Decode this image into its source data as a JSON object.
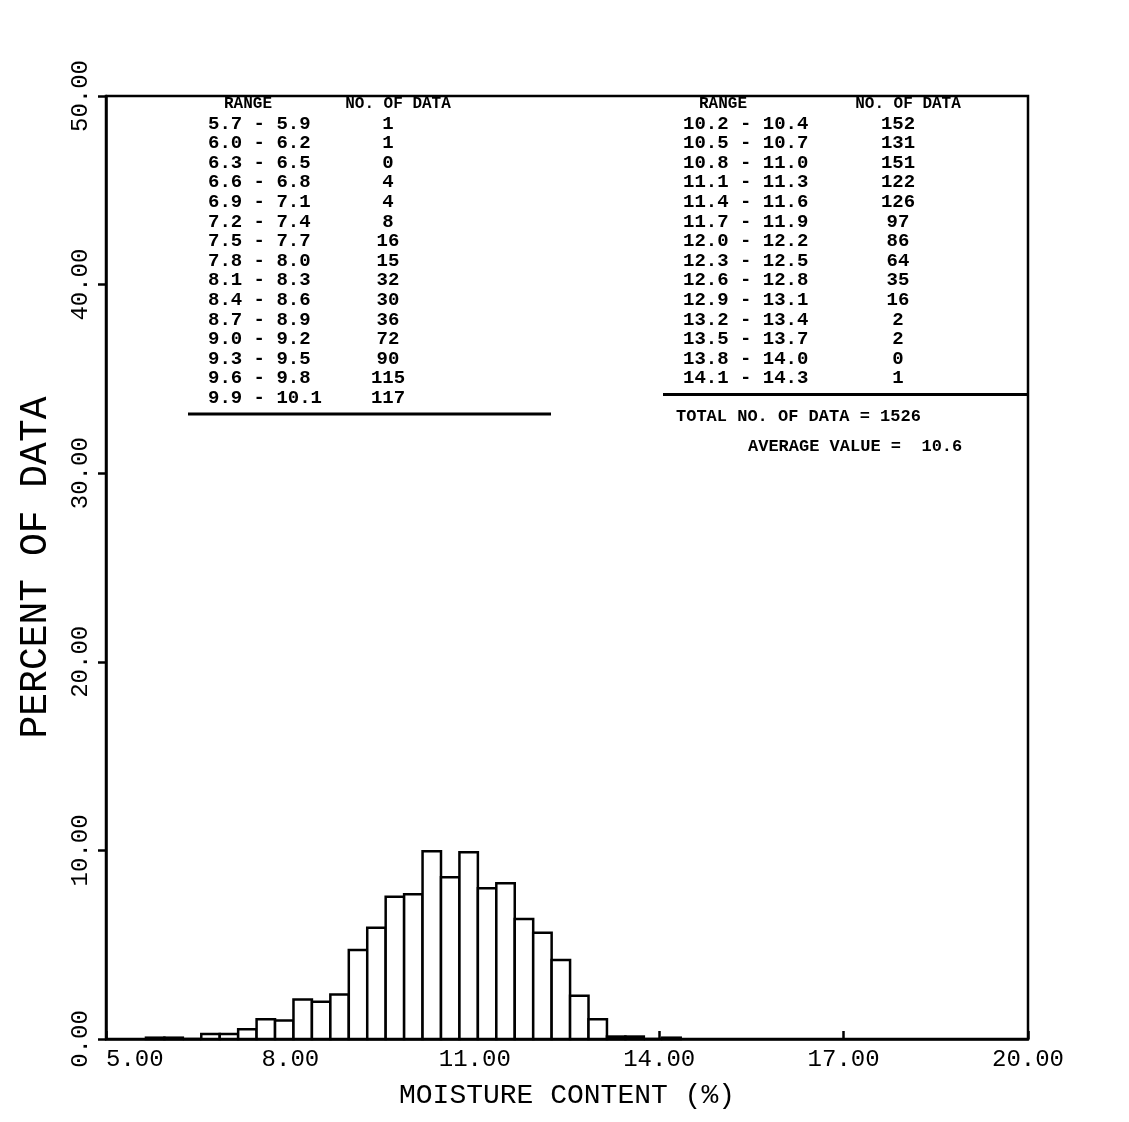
{
  "chart_data": {
    "type": "histogram",
    "xlabel": "MOISTURE CONTENT (%)",
    "ylabel": "PERCENT OF DATA",
    "bins": [
      5.65,
      5.95,
      6.25,
      6.55,
      6.85,
      7.15,
      7.45,
      7.75,
      8.05,
      8.35,
      8.65,
      8.95,
      9.25,
      9.55,
      9.85,
      10.15,
      10.45,
      10.75,
      11.05,
      11.35,
      11.65,
      11.95,
      12.25,
      12.55,
      12.85,
      13.15,
      13.45,
      13.75,
      14.05,
      14.35
    ],
    "values": [
      0.07,
      0.07,
      0,
      0.26,
      0.26,
      0.52,
      1.05,
      0.98,
      2.1,
      1.97,
      2.36,
      4.72,
      5.9,
      7.54,
      7.67,
      9.96,
      8.58,
      9.9,
      7.99,
      8.26,
      6.36,
      5.64,
      4.19,
      2.29,
      1.05,
      0.13,
      0.13,
      0,
      0.07
    ],
    "color": "#ffffff",
    "xlim": [
      5,
      20
    ],
    "xticks": [
      {
        "value": 5,
        "label": "5.00"
      },
      {
        "value": 8,
        "label": "8.00"
      },
      {
        "value": 11,
        "label": "11.00"
      },
      {
        "value": 14,
        "label": "14.00"
      },
      {
        "value": 17,
        "label": "17.00"
      },
      {
        "value": 20,
        "label": "20.00"
      }
    ],
    "ylim": [
      0,
      50
    ],
    "yticks": [
      {
        "value": 0,
        "label": "0.00"
      },
      {
        "value": 10,
        "label": "10.00"
      },
      {
        "value": 20,
        "label": "20.00"
      },
      {
        "value": 30,
        "label": "30.00"
      },
      {
        "value": 40,
        "label": "40.00"
      },
      {
        "value": 50,
        "label": "50.00"
      }
    ],
    "grid": false,
    "annotations": [
      "RANGE",
      "NO. OF DATA",
      "5.7 - 5.9",
      "1",
      "6.0 - 6.2",
      "1",
      "6.3 - 6.5",
      "0",
      "6.6 - 6.8",
      "4",
      "6.9 - 7.1",
      "4",
      "7.2 - 7.4",
      "8",
      "7.5 - 7.7",
      "16",
      "7.8 - 8.0",
      "15",
      "8.1 - 8.3",
      "32",
      "8.4 - 8.6",
      "30",
      "8.7 - 8.9",
      "36",
      "9.0 - 9.2",
      "72",
      "9.3 - 9.5",
      "90",
      "9.6 - 9.8",
      "115",
      "9.9 - 10.1",
      "117",
      "RANGE",
      "NO. OF DATA",
      "10.2 - 10.4",
      "152",
      "10.5 - 10.7",
      "131",
      "10.8 - 11.0",
      "151",
      "11.1 - 11.3",
      "122",
      "11.4 - 11.6",
      "126",
      "11.7 - 11.9",
      "97",
      "12.0 - 12.2",
      "86",
      "12.3 - 12.5",
      "64",
      "12.6 - 12.8",
      "35",
      "12.9 - 13.1",
      "16",
      "13.2 - 13.4",
      "2",
      "13.5 - 13.7",
      "2",
      "13.8 - 14.0",
      "0",
      "14.1 - 14.3",
      "1",
      "TOTAL NO. OF DATA = 1526",
      "AVERAGE VALUE =  10.6"
    ]
  }
}
